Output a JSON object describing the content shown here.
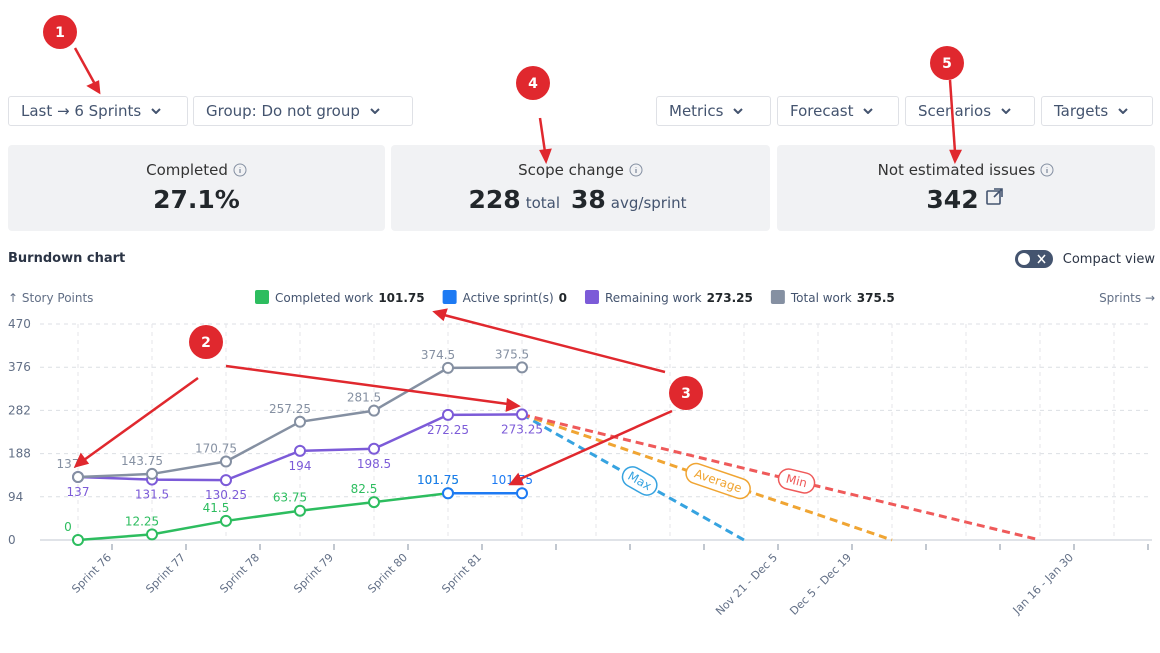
{
  "toolbar": {
    "left": [
      "Last → 6 Sprints",
      "Group: Do not group"
    ],
    "right": [
      "Metrics",
      "Forecast",
      "Scenarios",
      "Targets"
    ]
  },
  "cards": [
    {
      "title": "Completed",
      "value": "27.1%"
    },
    {
      "title": "Scope change",
      "total": "228",
      "total_label": "total",
      "avg": "38",
      "avg_label": "avg/sprint"
    },
    {
      "title": "Not estimated issues",
      "value": "342"
    }
  ],
  "section": {
    "title": "Burndown chart",
    "toggle": "Compact view"
  },
  "callouts": [
    "1",
    "2",
    "3",
    "4",
    "5"
  ],
  "chart_data": {
    "type": "line",
    "y_label": "↑ Story Points",
    "x_label": "Sprints →",
    "categories": [
      "Sprint 76",
      "Sprint 77",
      "Sprint 78",
      "Sprint 79",
      "Sprint 80",
      "Sprint 81",
      null,
      null,
      null,
      "Nov 21 - Dec 5",
      "Dec 5 - Dec 19",
      null,
      null,
      "Jan 16 - Jan 30",
      null
    ],
    "ylim": [
      0,
      470
    ],
    "yticks": [
      0,
      94,
      188,
      282,
      376,
      470
    ],
    "grid": true,
    "series": [
      {
        "name": "Completed work",
        "total": 101.75,
        "color": "#2dbd5f",
        "label_position": "above",
        "values": [
          0,
          12.25,
          41.5,
          63.75,
          82.5,
          101.75,
          null,
          null,
          null,
          null,
          null,
          null,
          null,
          null,
          null
        ]
      },
      {
        "name": "Active sprint(s)",
        "total": 0,
        "color": "#1d7af3",
        "label_position": "above",
        "values": [
          null,
          null,
          null,
          null,
          null,
          101.75,
          101.75,
          null,
          null,
          null,
          null,
          null,
          null,
          null,
          null
        ]
      },
      {
        "name": "Remaining work",
        "total": 273.25,
        "color": "#7c5bd8",
        "label_position": "below",
        "values": [
          137,
          131.5,
          130.25,
          194,
          198.5,
          272.25,
          273.25,
          null,
          null,
          null,
          null,
          null,
          null,
          null,
          null
        ]
      },
      {
        "name": "Total work",
        "total": 375.5,
        "color": "#8590a2",
        "label_position": "above",
        "values": [
          137,
          143.75,
          170.75,
          257.25,
          281.5,
          374.5,
          375.5,
          null,
          null,
          null,
          null,
          null,
          null,
          null,
          null
        ]
      }
    ],
    "forecasts": [
      {
        "name": "Max",
        "color": "#36a3e0",
        "values": [
          null,
          null,
          null,
          null,
          null,
          null,
          273.25,
          182,
          91,
          0,
          null,
          null,
          null,
          null,
          null
        ]
      },
      {
        "name": "Average",
        "color": "#f0a533",
        "values": [
          null,
          null,
          null,
          null,
          null,
          null,
          273.25,
          219,
          164,
          109,
          55,
          0,
          null,
          null,
          null
        ]
      },
      {
        "name": "Min",
        "color": "#ef5a5a",
        "values": [
          null,
          null,
          null,
          null,
          null,
          null,
          273.25,
          234,
          195,
          156,
          117,
          78,
          39,
          0,
          null
        ]
      }
    ]
  }
}
